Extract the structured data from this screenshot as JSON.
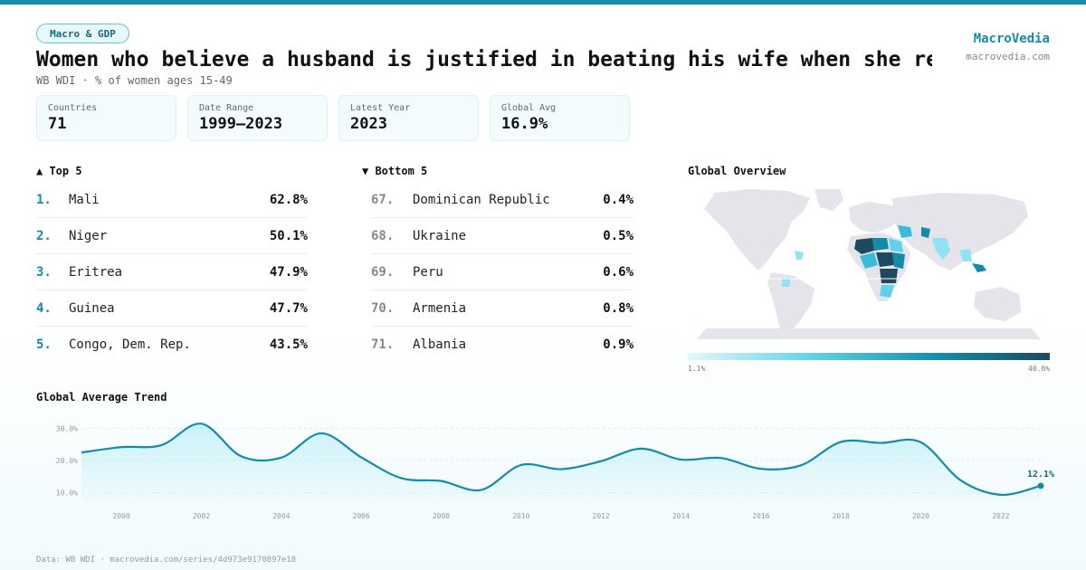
{
  "header": {
    "tag": "Macro & GDP",
    "title": "Women who believe a husband is justified in beating his wife when she re…",
    "subtitle": "WB WDI · % of women ages 15-49",
    "brand": "MacroVedia",
    "brand_url": "macrovedia.com"
  },
  "stats": [
    {
      "label": "Countries",
      "value": "71"
    },
    {
      "label": "Date Range",
      "value": "1999–2023"
    },
    {
      "label": "Latest Year",
      "value": "2023"
    },
    {
      "label": "Global Avg",
      "value": "16.9%"
    }
  ],
  "top5": {
    "heading": "▲ Top 5",
    "items": [
      {
        "rank": "1.",
        "name": "Mali",
        "value": "62.8%"
      },
      {
        "rank": "2.",
        "name": "Niger",
        "value": "50.1%"
      },
      {
        "rank": "3.",
        "name": "Eritrea",
        "value": "47.9%"
      },
      {
        "rank": "4.",
        "name": "Guinea",
        "value": "47.7%"
      },
      {
        "rank": "5.",
        "name": "Congo, Dem. Rep.",
        "value": "43.5%"
      }
    ]
  },
  "bottom5": {
    "heading": "▼ Bottom 5",
    "items": [
      {
        "rank": "67.",
        "name": "Dominican Republic",
        "value": "0.4%"
      },
      {
        "rank": "68.",
        "name": "Ukraine",
        "value": "0.5%"
      },
      {
        "rank": "69.",
        "name": "Peru",
        "value": "0.6%"
      },
      {
        "rank": "70.",
        "name": "Armenia",
        "value": "0.8%"
      },
      {
        "rank": "71.",
        "name": "Albania",
        "value": "0.9%"
      }
    ]
  },
  "map": {
    "heading": "Global Overview",
    "legend_min": "1.1%",
    "legend_max": "40.6%",
    "colors": {
      "land": "#e4e4ea",
      "low": "#8fe3f3",
      "mid": "#38bcd8",
      "high": "#138ba9",
      "max": "#1d4a5e"
    }
  },
  "trend": {
    "heading": "Global Average Trend",
    "last_label": "12.1%",
    "line_color": "#138ba9"
  },
  "footer": "Data: WB WDI · macrovedia.com/series/4d973e9170897e18",
  "chart_data": {
    "type": "line",
    "x": [
      1999,
      2000,
      2001,
      2002,
      2003,
      2004,
      2005,
      2006,
      2007,
      2008,
      2009,
      2010,
      2011,
      2012,
      2013,
      2014,
      2015,
      2016,
      2017,
      2018,
      2019,
      2020,
      2021,
      2022,
      2023
    ],
    "values": [
      22.5,
      24.2,
      24.8,
      31.5,
      21.3,
      20.9,
      28.5,
      21.0,
      14.5,
      13.6,
      10.8,
      18.6,
      17.3,
      19.8,
      23.7,
      20.3,
      20.8,
      17.4,
      18.5,
      25.8,
      25.5,
      25.7,
      13.8,
      9.3,
      12.1
    ],
    "yticks": [
      10,
      20,
      30
    ],
    "ytick_labels": [
      "10.0%",
      "20.0%",
      "30.0%"
    ],
    "xticks": [
      2000,
      2002,
      2004,
      2006,
      2008,
      2010,
      2012,
      2014,
      2016,
      2018,
      2020,
      2022
    ],
    "ylim": [
      7,
      33
    ],
    "grid": true
  }
}
